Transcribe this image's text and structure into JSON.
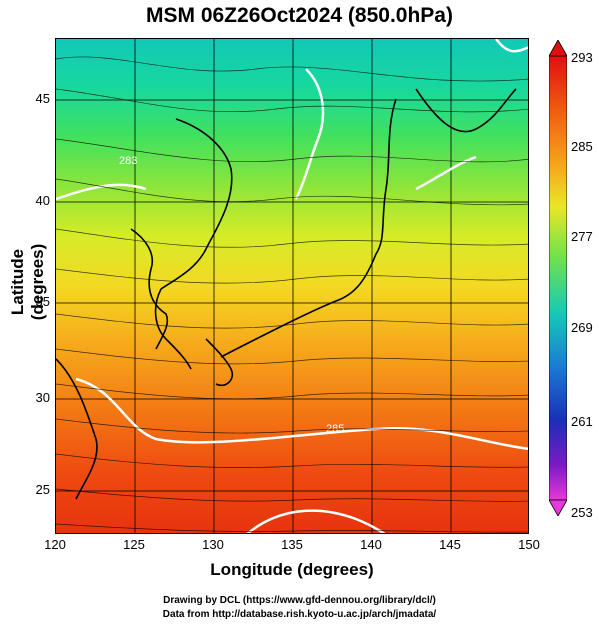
{
  "title": "MSM 06Z26Oct2024 (850.0hPa)",
  "x_axis": {
    "label": "Longitude (degrees)",
    "ticks": [
      "120",
      "125",
      "130",
      "135",
      "140",
      "145",
      "150"
    ]
  },
  "y_axis": {
    "label": "Latitude  (degrees)",
    "ticks": [
      "45",
      "40",
      "35",
      "30",
      "25"
    ]
  },
  "colorbar": {
    "ticks": [
      "293",
      "285",
      "277",
      "269",
      "261",
      "253"
    ],
    "colors": [
      "#e01010",
      "#f05a10",
      "#f7a21a",
      "#e9e726",
      "#72e24a",
      "#16c9b7",
      "#1a7bd4",
      "#1a2fb8",
      "#7a19c4",
      "#e838dc"
    ]
  },
  "contour_labels": [
    "285",
    "283"
  ],
  "footer": {
    "line1": "Drawing by DCL (https://www.gfd-dennou.org/library/dcl/)",
    "line2": "Data from http://database.rish.kyoto-u.ac.jp/arch/jmadata/"
  }
}
